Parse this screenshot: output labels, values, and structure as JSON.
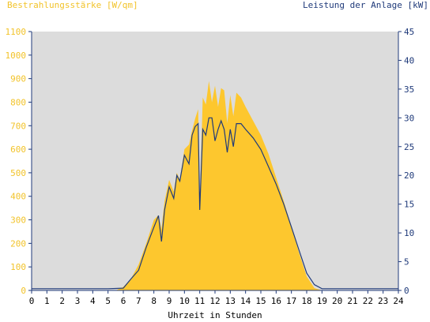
{
  "chart_data": {
    "type": "area",
    "left_axis_label": "Bestrahlungsstärke [W/qm]",
    "right_axis_label": "Leistung der Anlage [kW]",
    "xlabel": "Uhrzeit in Stunden",
    "xlim": [
      0,
      24
    ],
    "ylim_left": [
      0,
      1100
    ],
    "ylim_right": [
      0,
      45
    ],
    "x_ticks": [
      "0",
      "1",
      "2",
      "3",
      "4",
      "5",
      "6",
      "7",
      "8",
      "9",
      "10",
      "11",
      "12",
      "13",
      "14",
      "15",
      "16",
      "17",
      "18",
      "19",
      "20",
      "21",
      "22",
      "23",
      "24"
    ],
    "y_left_ticks": [
      "0",
      "100",
      "200",
      "300",
      "400",
      "500",
      "600",
      "700",
      "800",
      "900",
      "1000",
      "1100"
    ],
    "y_right_ticks": [
      "0",
      "5",
      "10",
      "15",
      "20",
      "25",
      "30",
      "35",
      "40",
      "45"
    ],
    "grid": false,
    "colors": {
      "plot_bg": "#dcdcdc",
      "irradiance": "#fdc72e",
      "power": "#1f3a7a",
      "left_axis_text": "#f2c32a",
      "right_axis_text": "#1f3a7a"
    },
    "series": [
      {
        "name": "Bestrahlungsstärke [W/qm]",
        "axis": "left",
        "x": [
          0,
          5.5,
          6.0,
          6.5,
          7.0,
          7.5,
          8.0,
          8.3,
          8.5,
          8.7,
          9.0,
          9.3,
          9.5,
          9.7,
          10.0,
          10.3,
          10.5,
          10.7,
          10.9,
          11.0,
          11.2,
          11.4,
          11.6,
          11.8,
          12.0,
          12.2,
          12.4,
          12.6,
          12.8,
          13.0,
          13.2,
          13.4,
          13.7,
          14.0,
          14.5,
          15.0,
          15.5,
          16.0,
          16.5,
          17.0,
          17.5,
          18.0,
          18.5,
          19.0,
          19.5,
          24
        ],
        "y": [
          0,
          0,
          15,
          50,
          110,
          200,
          300,
          320,
          260,
          380,
          470,
          420,
          500,
          470,
          600,
          620,
          680,
          730,
          770,
          360,
          820,
          790,
          890,
          800,
          870,
          780,
          860,
          850,
          710,
          830,
          740,
          840,
          820,
          780,
          720,
          660,
          580,
          480,
          380,
          270,
          160,
          60,
          10,
          0,
          0,
          0
        ]
      },
      {
        "name": "Leistung der Anlage [kW]",
        "axis": "right",
        "x": [
          0,
          5.0,
          6.0,
          6.5,
          7.0,
          7.5,
          8.0,
          8.3,
          8.5,
          8.7,
          9.0,
          9.3,
          9.5,
          9.7,
          10.0,
          10.3,
          10.5,
          10.7,
          10.9,
          11.0,
          11.2,
          11.4,
          11.6,
          11.8,
          12.0,
          12.2,
          12.4,
          12.6,
          12.8,
          13.0,
          13.2,
          13.4,
          13.7,
          14.0,
          14.5,
          15.0,
          15.5,
          16.0,
          16.5,
          17.0,
          17.5,
          18.0,
          18.5,
          19.0,
          24
        ],
        "y": [
          0.3,
          0.3,
          0.4,
          2,
          3.5,
          7.5,
          11,
          13,
          8.5,
          14,
          18,
          16,
          20,
          19,
          23.5,
          22,
          27,
          28.5,
          29,
          14,
          28,
          27,
          30,
          30,
          26,
          28,
          29.5,
          28,
          24,
          28,
          25,
          29,
          29,
          28,
          26.5,
          24.5,
          21.5,
          18.5,
          15,
          11,
          7,
          3,
          1,
          0.3,
          0.3
        ]
      }
    ]
  },
  "xlabel_text": "Uhrzeit in Stunden"
}
